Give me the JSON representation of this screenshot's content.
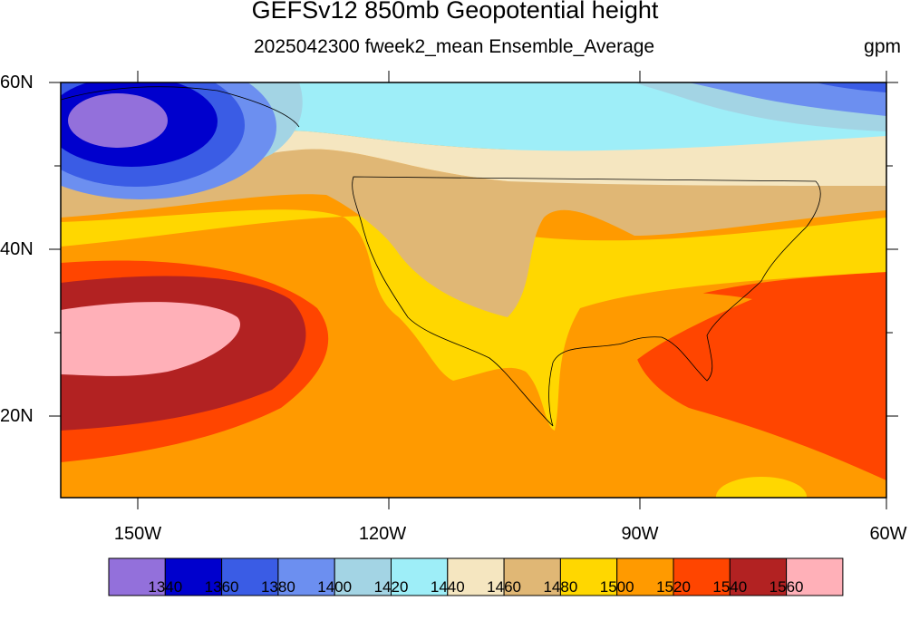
{
  "title": "GEFSv12 850mb Geopotential height",
  "subtitle": "2025042300 fweek2_mean Ensemble_Average",
  "units": "gpm",
  "y_axis": {
    "ticks": [
      "60N",
      "40N",
      "20N"
    ]
  },
  "x_axis": {
    "ticks": [
      "150W",
      "120W",
      "90W",
      "60W"
    ]
  },
  "colorbar": {
    "labels": [
      "1340",
      "1360",
      "1380",
      "1400",
      "1420",
      "1440",
      "1460",
      "1480",
      "1500",
      "1520",
      "1540",
      "1560"
    ],
    "colors": [
      "#9370db",
      "#0000cd",
      "#3a5ce5",
      "#6c8ff0",
      "#a3d4e4",
      "#9eeef8",
      "#f5e6c0",
      "#e0b775",
      "#ffd700",
      "#ff9a00",
      "#ff4500",
      "#b22222",
      "#ffb0b8"
    ]
  },
  "map": {
    "projection": "cylindrical-equidistant",
    "lon_range": [
      "160W",
      "60W"
    ],
    "lat_range": [
      "10N",
      "60N"
    ],
    "field": "850mb geopotential height ensemble mean",
    "colors": {
      "c1340": "#9370db",
      "c1360": "#0000cd",
      "c1380": "#3a5ce5",
      "c1400": "#6c8ff0",
      "c1420": "#a3d4e4",
      "c1440": "#9eeef8",
      "c1460": "#f5e6c0",
      "c1480": "#e0b775",
      "c1500": "#ffd700",
      "c1520": "#ff9a00",
      "c1540": "#ff4500",
      "c1560": "#b22222",
      "c1580": "#ffb0b8",
      "missing": "#c8c8c8"
    }
  }
}
